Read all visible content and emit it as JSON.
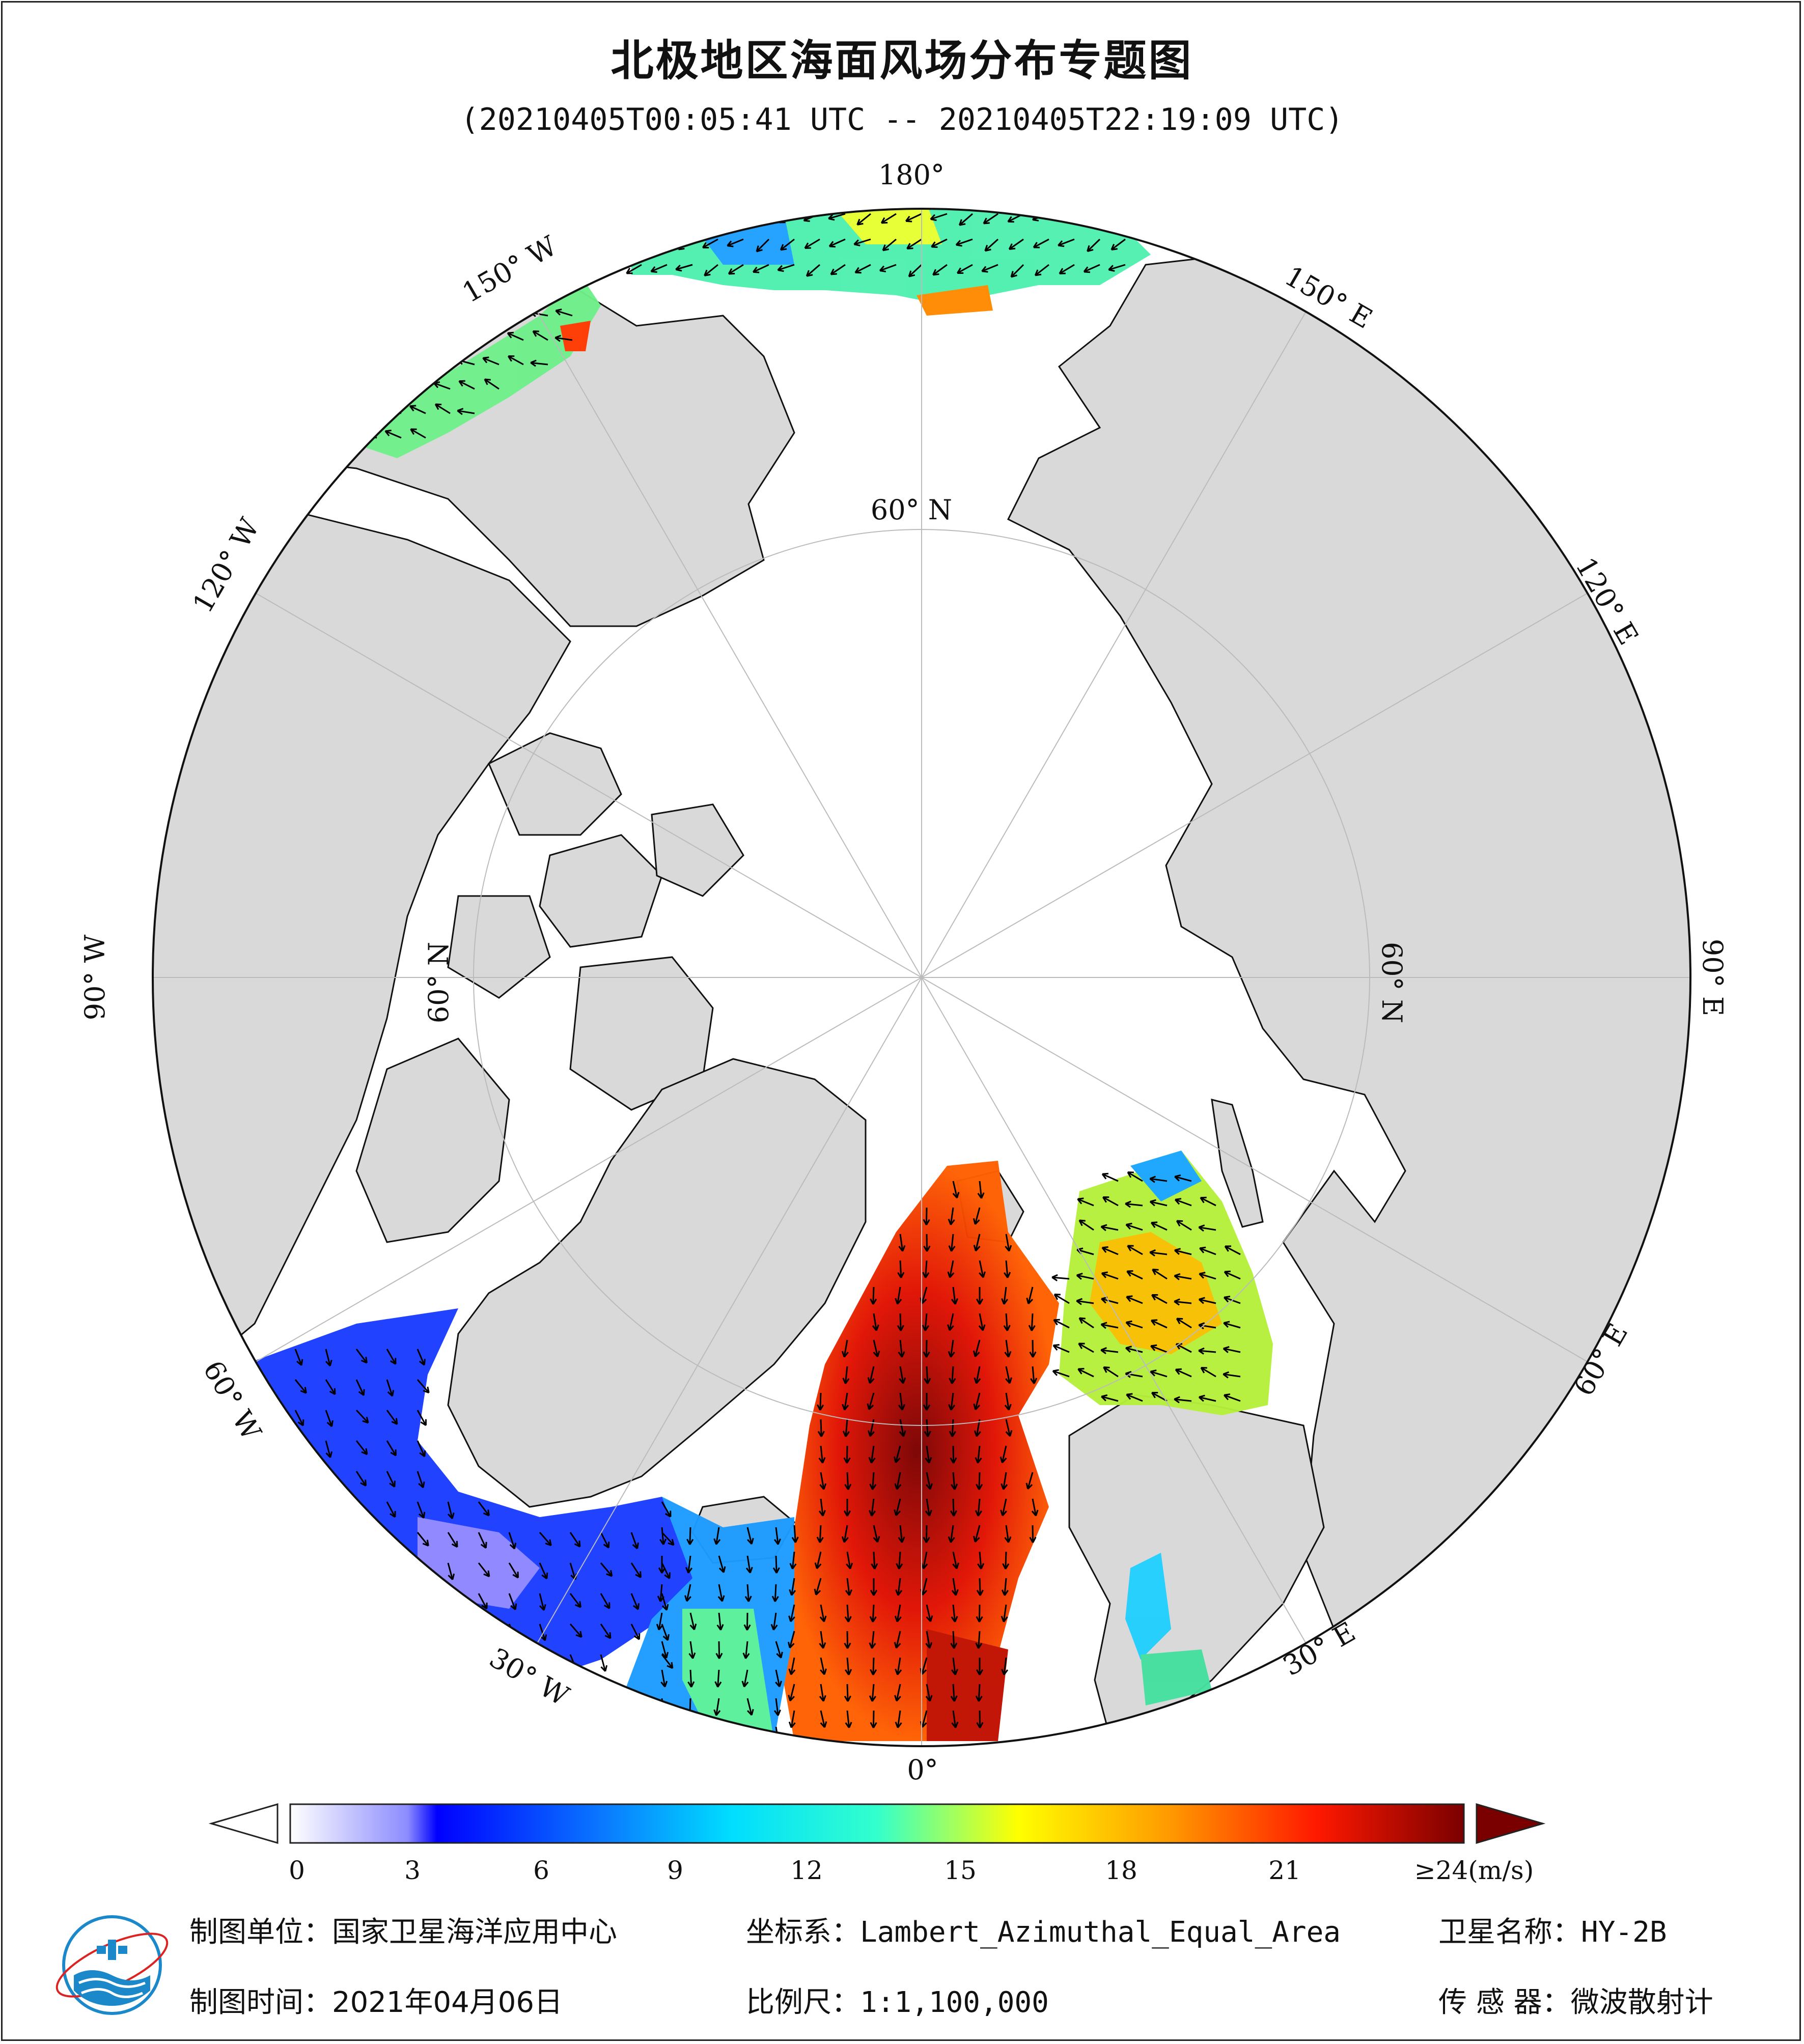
{
  "title": "北极地区海面风场分布专题图",
  "subtitle": "(20210405T00:05:41 UTC -- 20210405T22:19:09 UTC)",
  "map": {
    "projection_labels": {
      "lon_0": "0°",
      "lon_30e": "30° E",
      "lon_60e": "60° E",
      "lon_90e": "90° E",
      "lon_120e": "120° E",
      "lon_150e": "150° E",
      "lon_180": "180°",
      "lon_150w": "150° W",
      "lon_120w": "120° W",
      "lon_90w": "90° W",
      "lon_60w": "60° W",
      "lon_30w": "30° W",
      "lat_60n_top": "60° N",
      "lat_60n_right": "60° N",
      "lat_60n_left": "60° N"
    },
    "colors": {
      "land": "#d9d9d9",
      "ice_ocean": "#ffffff",
      "coast": "#111111",
      "grid": "#bbbbbb"
    }
  },
  "colorbar": {
    "ticks": [
      "0",
      "3",
      "6",
      "9",
      "12",
      "15",
      "18",
      "21",
      "≥24(m/s)"
    ],
    "min": 0,
    "max": 24,
    "unit": "m/s"
  },
  "footer": {
    "unit_label": "制图单位：",
    "unit_value": "国家卫星海洋应用中心",
    "time_label": "制图时间：",
    "time_value": "2021年04月06日",
    "crs_label": "坐标系：",
    "crs_value": "Lambert_Azimuthal_Equal_Area",
    "scale_label": "比例尺：",
    "scale_value": "1:1,100,000",
    "sat_label": "卫星名称：",
    "sat_value": "HY-2B",
    "sensor_label": "传 感 器：",
    "sensor_value": "微波散射计"
  }
}
